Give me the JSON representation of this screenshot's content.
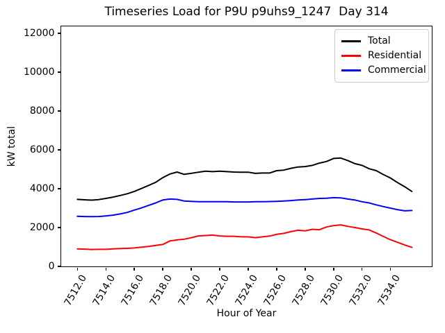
{
  "title": "Timeseries Load for P9U p9uhs9_1247  Day 314",
  "chart_data": {
    "type": "line",
    "title": "Timeseries Load for P9U p9uhs9_1247  Day 314",
    "xlabel": "Hour of Year",
    "ylabel": "kW total",
    "xlim": [
      7510.86,
      7536.9
    ],
    "ylim": [
      0,
      12360
    ],
    "xticks": [
      7512,
      7514,
      7516,
      7518,
      7520,
      7522,
      7524,
      7526,
      7528,
      7530,
      7532,
      7534
    ],
    "xtick_labels": [
      "7512.0",
      "7514.0",
      "7516.0",
      "7518.0",
      "7520.0",
      "7522.0",
      "7524.0",
      "7526.0",
      "7528.0",
      "7530.0",
      "7532.0",
      "7534.0"
    ],
    "xtick_rotation_deg": 60,
    "yticks": [
      0,
      2000,
      4000,
      6000,
      8000,
      10000,
      12000
    ],
    "ytick_labels": [
      "0",
      "2000",
      "4000",
      "6000",
      "8000",
      "10000",
      "12000"
    ],
    "grid": false,
    "legend_position": "upper right",
    "x": [
      7512.0,
      7512.5,
      7513.0,
      7513.5,
      7514.0,
      7514.5,
      7515.0,
      7515.5,
      7516.0,
      7516.5,
      7517.0,
      7517.5,
      7518.0,
      7518.5,
      7519.0,
      7519.5,
      7520.0,
      7520.5,
      7521.0,
      7521.5,
      7522.0,
      7522.5,
      7523.0,
      7523.5,
      7524.0,
      7524.5,
      7525.0,
      7525.5,
      7526.0,
      7526.5,
      7527.0,
      7527.5,
      7528.0,
      7528.5,
      7529.0,
      7529.5,
      7530.0,
      7530.5,
      7531.0,
      7531.5,
      7532.0,
      7532.5,
      7533.0,
      7533.5,
      7534.0,
      7534.5,
      7535.0,
      7535.5
    ],
    "series": [
      {
        "name": "Total",
        "color": "#000000",
        "values": [
          3450,
          3430,
          3410,
          3440,
          3500,
          3570,
          3650,
          3740,
          3860,
          4010,
          4170,
          4330,
          4570,
          4760,
          4860,
          4740,
          4790,
          4850,
          4900,
          4880,
          4900,
          4880,
          4860,
          4850,
          4850,
          4790,
          4810,
          4810,
          4930,
          4960,
          5050,
          5120,
          5140,
          5200,
          5320,
          5400,
          5560,
          5580,
          5450,
          5290,
          5200,
          5030,
          4930,
          4730,
          4550,
          4310,
          4100,
          3860
        ]
      },
      {
        "name": "Residential",
        "color": "#ff0000",
        "values": [
          900,
          890,
          870,
          880,
          880,
          900,
          920,
          930,
          950,
          990,
          1030,
          1080,
          1130,
          1310,
          1360,
          1400,
          1480,
          1570,
          1590,
          1610,
          1570,
          1550,
          1550,
          1520,
          1520,
          1480,
          1520,
          1560,
          1650,
          1700,
          1790,
          1860,
          1830,
          1910,
          1890,
          2030,
          2100,
          2140,
          2060,
          2000,
          1930,
          1880,
          1720,
          1540,
          1370,
          1240,
          1100,
          980
        ]
      },
      {
        "name": "Commercial",
        "color": "#0000ff",
        "values": [
          2580,
          2570,
          2560,
          2570,
          2600,
          2640,
          2700,
          2780,
          2900,
          3010,
          3140,
          3270,
          3420,
          3470,
          3450,
          3370,
          3350,
          3330,
          3330,
          3330,
          3330,
          3330,
          3320,
          3320,
          3320,
          3330,
          3330,
          3340,
          3350,
          3370,
          3390,
          3420,
          3440,
          3470,
          3500,
          3510,
          3540,
          3530,
          3470,
          3420,
          3330,
          3270,
          3170,
          3080,
          3000,
          2920,
          2860,
          2880
        ]
      }
    ]
  }
}
